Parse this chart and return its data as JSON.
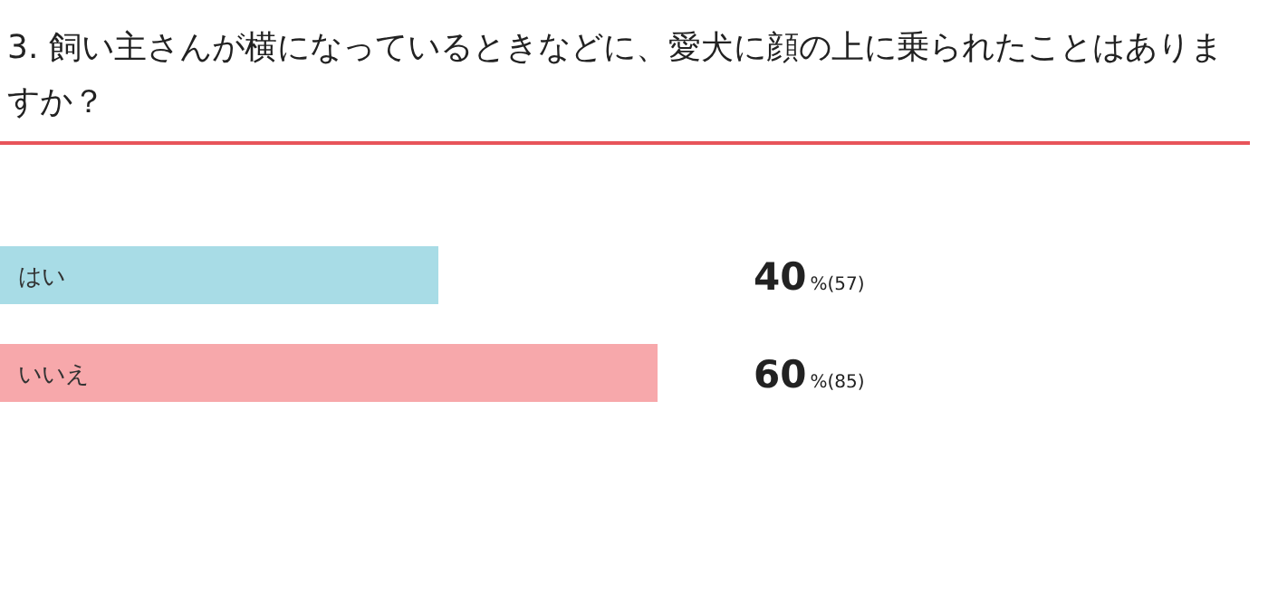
{
  "chart_data": {
    "type": "bar",
    "orientation": "horizontal",
    "title": "3. 飼い主さんが横になっているときなどに、愛犬に顔の上に乗られたことはありますか？",
    "categories": [
      "はい",
      "いいえ"
    ],
    "values": [
      40,
      60
    ],
    "colors": [
      "#a8dce6",
      "#f7a8ab"
    ],
    "value_labels": [
      "40%(57)",
      "60%(85)"
    ]
  }
}
